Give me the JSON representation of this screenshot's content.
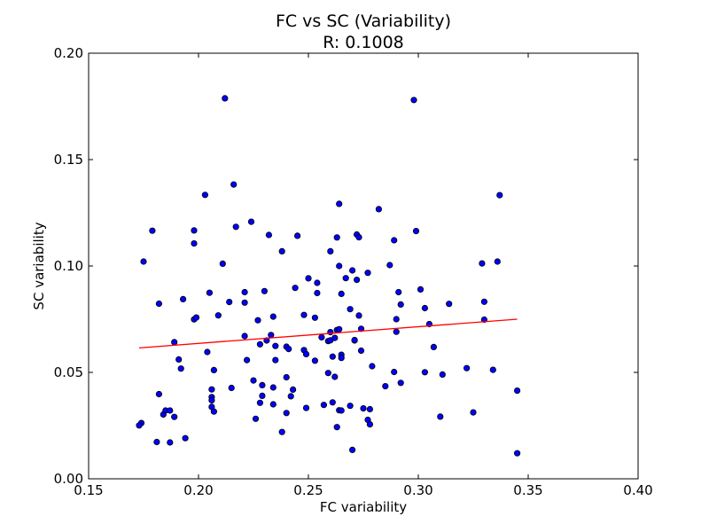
{
  "chart_data": {
    "type": "scatter",
    "title_line1": "FC vs SC (Variability)",
    "title_line2": "R: 0.1008",
    "xlabel": "FC variability",
    "ylabel": "SC variability",
    "xlim": [
      0.15,
      0.4
    ],
    "ylim": [
      0.0,
      0.2
    ],
    "xticks": [
      0.15,
      0.2,
      0.25,
      0.3,
      0.35,
      0.4
    ],
    "xtick_labels": [
      "0.15",
      "0.20",
      "0.25",
      "0.30",
      "0.35",
      "0.40"
    ],
    "yticks": [
      0.0,
      0.05,
      0.1,
      0.15,
      0.2
    ],
    "ytick_labels": [
      "0.00",
      "0.05",
      "0.10",
      "0.15",
      "0.20"
    ],
    "point_color": "#0000ff",
    "point_edge": "#000000",
    "fit_color": "#ff0000",
    "fit_line": {
      "x": [
        0.173,
        0.345
      ],
      "y": [
        0.0615,
        0.075
      ]
    },
    "points": [
      [
        0.174,
        0.0262
      ],
      [
        0.173,
        0.0251
      ],
      [
        0.175,
        0.1021
      ],
      [
        0.179,
        0.1166
      ],
      [
        0.181,
        0.0173
      ],
      [
        0.182,
        0.0398
      ],
      [
        0.182,
        0.0823
      ],
      [
        0.184,
        0.0302
      ],
      [
        0.185,
        0.0321
      ],
      [
        0.187,
        0.0321
      ],
      [
        0.187,
        0.0171
      ],
      [
        0.189,
        0.0642
      ],
      [
        0.189,
        0.0291
      ],
      [
        0.191,
        0.0561
      ],
      [
        0.192,
        0.0518
      ],
      [
        0.193,
        0.0844
      ],
      [
        0.194,
        0.0191
      ],
      [
        0.198,
        0.0749
      ],
      [
        0.198,
        0.1167
      ],
      [
        0.198,
        0.1106
      ],
      [
        0.199,
        0.0758
      ],
      [
        0.203,
        0.1334
      ],
      [
        0.204,
        0.0596
      ],
      [
        0.205,
        0.0874
      ],
      [
        0.206,
        0.042
      ],
      [
        0.206,
        0.0384
      ],
      [
        0.206,
        0.0369
      ],
      [
        0.206,
        0.0338
      ],
      [
        0.207,
        0.0316
      ],
      [
        0.207,
        0.0511
      ],
      [
        0.209,
        0.0768
      ],
      [
        0.211,
        0.1011
      ],
      [
        0.212,
        0.1788
      ],
      [
        0.214,
        0.0831
      ],
      [
        0.215,
        0.0427
      ],
      [
        0.216,
        0.1383
      ],
      [
        0.217,
        0.1184
      ],
      [
        0.221,
        0.0877
      ],
      [
        0.221,
        0.0671
      ],
      [
        0.221,
        0.0828
      ],
      [
        0.222,
        0.0558
      ],
      [
        0.224,
        0.1208
      ],
      [
        0.225,
        0.0462
      ],
      [
        0.226,
        0.0282
      ],
      [
        0.227,
        0.0745
      ],
      [
        0.228,
        0.0357
      ],
      [
        0.228,
        0.0632
      ],
      [
        0.229,
        0.044
      ],
      [
        0.229,
        0.039
      ],
      [
        0.23,
        0.0882
      ],
      [
        0.231,
        0.065
      ],
      [
        0.232,
        0.1146
      ],
      [
        0.233,
        0.0676
      ],
      [
        0.234,
        0.035
      ],
      [
        0.234,
        0.0762
      ],
      [
        0.234,
        0.0429
      ],
      [
        0.235,
        0.0558
      ],
      [
        0.235,
        0.0624
      ],
      [
        0.238,
        0.1069
      ],
      [
        0.238,
        0.022
      ],
      [
        0.24,
        0.0477
      ],
      [
        0.24,
        0.0309
      ],
      [
        0.24,
        0.0621
      ],
      [
        0.241,
        0.061
      ],
      [
        0.242,
        0.0388
      ],
      [
        0.243,
        0.0419
      ],
      [
        0.244,
        0.0897
      ],
      [
        0.245,
        0.1142
      ],
      [
        0.248,
        0.077
      ],
      [
        0.248,
        0.0605
      ],
      [
        0.249,
        0.0586
      ],
      [
        0.249,
        0.0333
      ],
      [
        0.25,
        0.0942
      ],
      [
        0.253,
        0.0555
      ],
      [
        0.253,
        0.0757
      ],
      [
        0.254,
        0.0921
      ],
      [
        0.254,
        0.0873
      ],
      [
        0.256,
        0.0665
      ],
      [
        0.257,
        0.0347
      ],
      [
        0.259,
        0.0497
      ],
      [
        0.259,
        0.0647
      ],
      [
        0.26,
        0.1069
      ],
      [
        0.26,
        0.0689
      ],
      [
        0.26,
        0.0651
      ],
      [
        0.261,
        0.0574
      ],
      [
        0.261,
        0.0359
      ],
      [
        0.262,
        0.0662
      ],
      [
        0.262,
        0.0479
      ],
      [
        0.263,
        0.0243
      ],
      [
        0.263,
        0.0699
      ],
      [
        0.263,
        0.1134
      ],
      [
        0.264,
        0.0703
      ],
      [
        0.264,
        0.0322
      ],
      [
        0.264,
        0.1292
      ],
      [
        0.264,
        0.1
      ],
      [
        0.265,
        0.0321
      ],
      [
        0.265,
        0.0869
      ],
      [
        0.265,
        0.0583
      ],
      [
        0.265,
        0.0568
      ],
      [
        0.267,
        0.0943
      ],
      [
        0.269,
        0.0797
      ],
      [
        0.269,
        0.0343
      ],
      [
        0.27,
        0.0979
      ],
      [
        0.27,
        0.0136
      ],
      [
        0.271,
        0.065
      ],
      [
        0.271,
        0.0652
      ],
      [
        0.272,
        0.0935
      ],
      [
        0.272,
        0.1148
      ],
      [
        0.273,
        0.1135
      ],
      [
        0.273,
        0.0767
      ],
      [
        0.274,
        0.0602
      ],
      [
        0.274,
        0.0705
      ],
      [
        0.275,
        0.0331
      ],
      [
        0.277,
        0.0277
      ],
      [
        0.277,
        0.0968
      ],
      [
        0.278,
        0.0327
      ],
      [
        0.278,
        0.0256
      ],
      [
        0.279,
        0.0529
      ],
      [
        0.282,
        0.1267
      ],
      [
        0.285,
        0.0435
      ],
      [
        0.287,
        0.1004
      ],
      [
        0.289,
        0.1121
      ],
      [
        0.289,
        0.0502
      ],
      [
        0.29,
        0.075
      ],
      [
        0.29,
        0.0691
      ],
      [
        0.291,
        0.0877
      ],
      [
        0.292,
        0.0451
      ],
      [
        0.292,
        0.0819
      ],
      [
        0.298,
        0.178
      ],
      [
        0.299,
        0.1164
      ],
      [
        0.301,
        0.089
      ],
      [
        0.303,
        0.0802
      ],
      [
        0.303,
        0.0501
      ],
      [
        0.305,
        0.0727
      ],
      [
        0.307,
        0.0619
      ],
      [
        0.31,
        0.0292
      ],
      [
        0.311,
        0.049
      ],
      [
        0.314,
        0.0822
      ],
      [
        0.322,
        0.052
      ],
      [
        0.325,
        0.0312
      ],
      [
        0.329,
        0.1012
      ],
      [
        0.33,
        0.0832
      ],
      [
        0.33,
        0.0748
      ],
      [
        0.334,
        0.0512
      ],
      [
        0.336,
        0.1021
      ],
      [
        0.337,
        0.1333
      ],
      [
        0.345,
        0.0414
      ],
      [
        0.345,
        0.012
      ]
    ]
  }
}
